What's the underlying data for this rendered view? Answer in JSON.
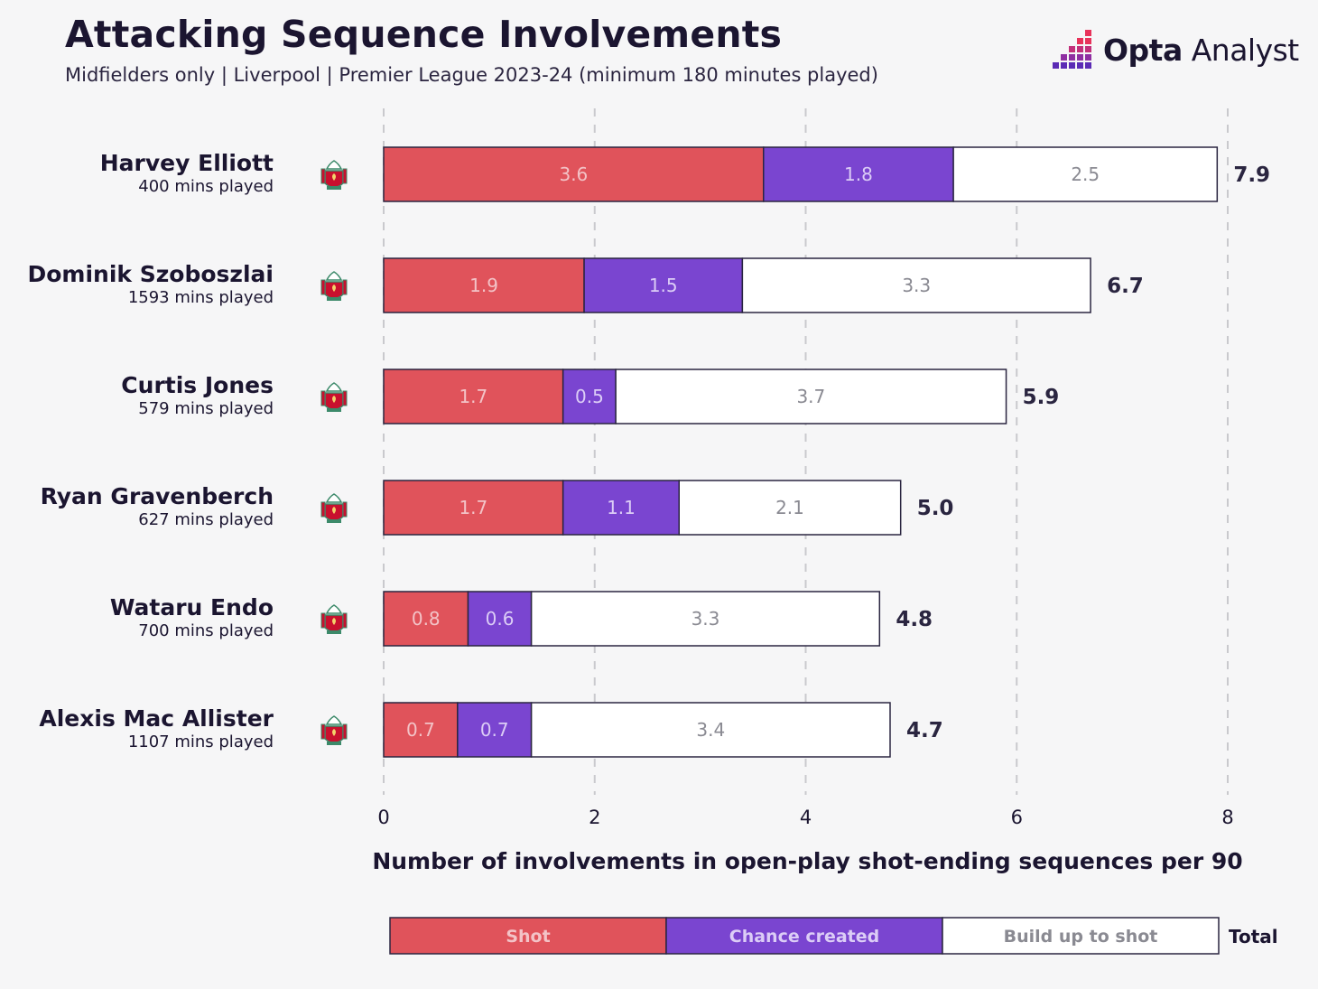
{
  "header": {
    "title": "Attacking Sequence Involvements",
    "subtitle": "Midfielders only | Liverpool | Premier League 2023-24 (minimum 180 minutes played)"
  },
  "brand": {
    "name_bold": "Opta",
    "name_light": " Analyst",
    "icon": "opta-analyst-logo-mark"
  },
  "colors": {
    "shot": "#e0535b",
    "chance": "#7a45d0",
    "buildup": "#ffffff",
    "outline": "#2a2540",
    "grid": "#c9c9cd",
    "label_on_color": "#f3c3c7",
    "label_on_purple": "#dccdf6",
    "label_on_white": "#8a8a92"
  },
  "chart_data": {
    "type": "bar",
    "orientation": "horizontal",
    "stacked": true,
    "title": "Attacking Sequence Involvements",
    "subtitle": "Midfielders only | Liverpool | Premier League 2023-24 (minimum 180 minutes played)",
    "xlabel": "Number of involvements in open-play shot-ending sequences per 90",
    "xlim": [
      0,
      8
    ],
    "xticks": [
      0,
      2,
      4,
      6,
      8
    ],
    "grid": "vertical dashed",
    "legend_placement": "bottom",
    "categories": [
      {
        "name": "Harvey Elliott",
        "mins": "400 mins played",
        "total": "7.9",
        "team_icon": "liverpool-crest-icon"
      },
      {
        "name": "Dominik Szoboszlai",
        "mins": "1593 mins played",
        "total": "6.7",
        "team_icon": "liverpool-crest-icon"
      },
      {
        "name": "Curtis Jones",
        "mins": "579 mins played",
        "total": "5.9",
        "team_icon": "liverpool-crest-icon"
      },
      {
        "name": "Ryan Gravenberch",
        "mins": "627 mins played",
        "total": "5.0",
        "team_icon": "liverpool-crest-icon"
      },
      {
        "name": "Wataru Endo",
        "mins": "700 mins played",
        "total": "4.8",
        "team_icon": "liverpool-crest-icon"
      },
      {
        "name": "Alexis Mac Allister",
        "mins": "1107 mins played",
        "total": "4.7",
        "team_icon": "liverpool-crest-icon"
      }
    ],
    "series": [
      {
        "name": "Shot",
        "values": [
          3.6,
          1.9,
          1.7,
          1.7,
          0.8,
          0.7
        ]
      },
      {
        "name": "Chance created",
        "values": [
          1.8,
          1.5,
          0.5,
          1.1,
          0.6,
          0.7
        ]
      },
      {
        "name": "Build up to shot",
        "values": [
          2.5,
          3.3,
          3.7,
          2.1,
          3.3,
          3.4
        ]
      }
    ],
    "legend": {
      "items": [
        "Shot",
        "Chance created",
        "Build up to shot"
      ],
      "total_label": "Total"
    }
  }
}
